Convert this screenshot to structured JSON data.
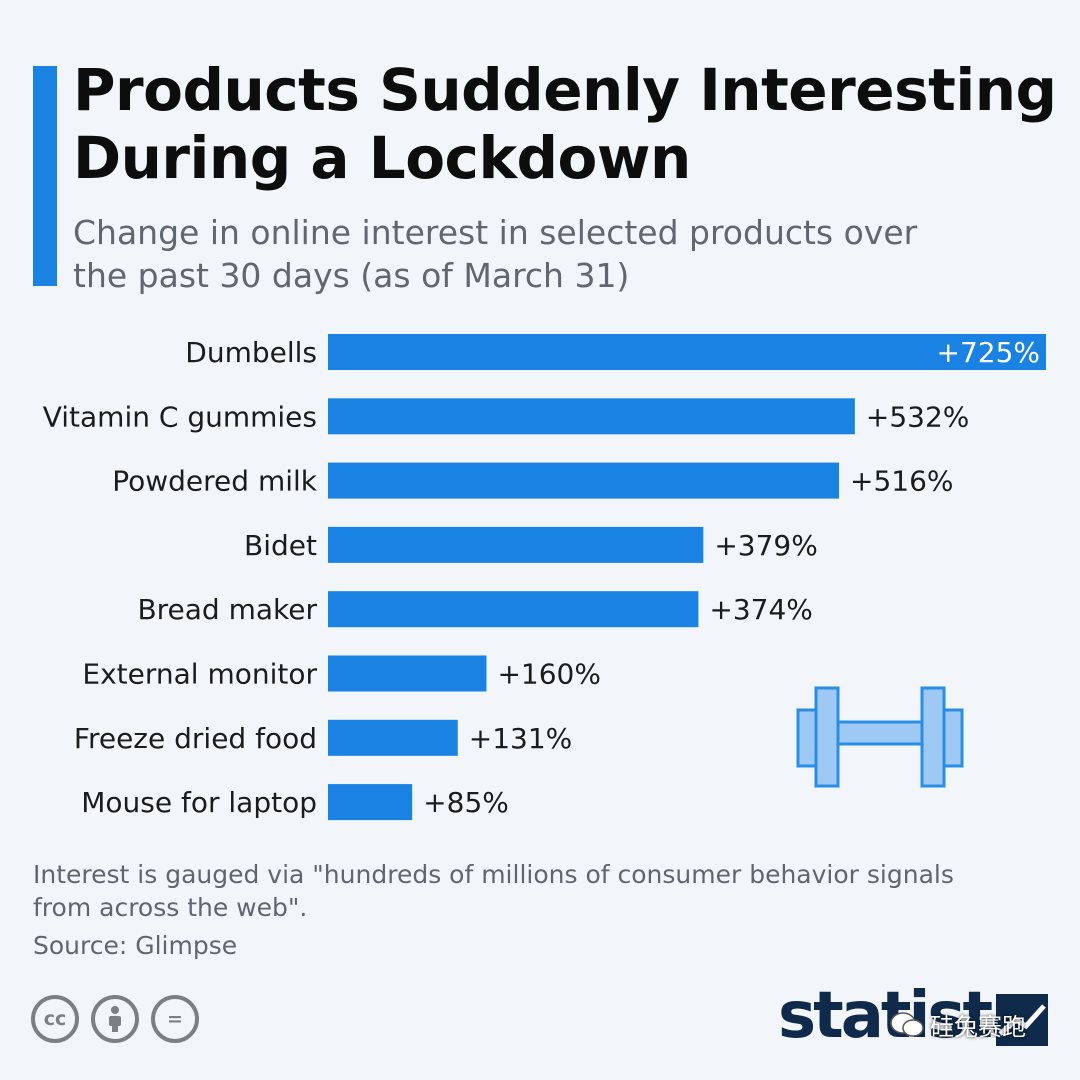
{
  "header": {
    "title": "Products Suddenly Interesting During a Lockdown",
    "subtitle": "Change in online interest in selected products over the past 30 days (as of March 31)"
  },
  "chart_data": {
    "type": "bar",
    "orientation": "horizontal",
    "categories": [
      "Dumbells",
      "Vitamin C gummies",
      "Powdered milk",
      "Bidet",
      "Bread maker",
      "External monitor",
      "Freeze dried food",
      "Mouse for laptop"
    ],
    "values": [
      725,
      532,
      516,
      379,
      374,
      160,
      131,
      85
    ],
    "value_labels": [
      "+725%",
      "+532%",
      "+516%",
      "+379%",
      "+374%",
      "+160%",
      "+131%",
      "+85%"
    ],
    "unit": "%",
    "xlim": [
      0,
      725
    ],
    "grid": false,
    "bar_color": "#1a82e2"
  },
  "footer": {
    "note": "Interest is gauged via \"hundreds of millions of consumer behavior signals from across the web\".",
    "source": "Source: Glimpse",
    "license_icons": [
      "cc-icon",
      "by-icon",
      "nd-icon"
    ],
    "cc_label": "cc",
    "nd_label": "="
  },
  "brand": {
    "logo": "statista",
    "watermark": "硅兔赛跑"
  },
  "colors": {
    "accent": "#1a82e2",
    "background": "#f2f6fa",
    "logo": "#0f2a4a"
  }
}
